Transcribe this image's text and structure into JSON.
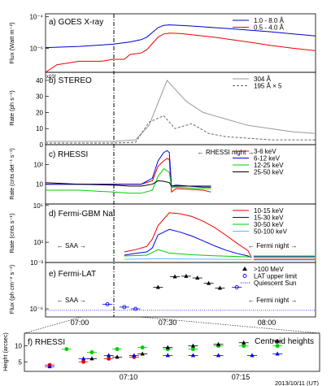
{
  "figure": {
    "bottom_xlabel": "2013/10/11 (UT)",
    "time_ticks_main": [
      "07:00",
      "07:30",
      "08:00"
    ],
    "time_ticks_zoom": [
      "07:10",
      "07:15"
    ]
  },
  "chart_data": [
    {
      "id": "goes",
      "type": "line",
      "panel_label": "a) GOES X-ray",
      "ylabel": "Flux (Watt m⁻²)",
      "yscale": "log",
      "ylim": [
        3e-08,
        0.00015
      ],
      "ytick_labels": [
        "10⁻⁴",
        "10⁻⁶"
      ],
      "ytick_values": [
        0.0001,
        1e-06
      ],
      "xlim": [
        6.2,
        8.6
      ],
      "series": [
        {
          "name": "1.0 - 8.0 Å",
          "color": "#0000cc",
          "x": [
            6.2,
            6.5,
            6.8,
            6.95,
            7.05,
            7.1,
            7.15,
            7.2,
            7.25,
            7.3,
            7.4,
            7.55,
            7.7,
            7.85,
            8.0,
            8.2,
            8.4,
            8.6
          ],
          "y": [
            1.1e-06,
            1.3e-06,
            1.8e-06,
            2.5e-06,
            3.5e-06,
            5e-06,
            1e-05,
            2e-05,
            2.8e-05,
            3e-05,
            2.8e-05,
            2.4e-05,
            2e-05,
            1.7e-05,
            1.4e-05,
            1.1e-05,
            8e-06,
            6e-06
          ]
        },
        {
          "name": "0.5 - 4.0 Å",
          "color": "#ee0000",
          "x": [
            6.2,
            6.3,
            6.5,
            6.7,
            6.8,
            6.9,
            6.95,
            7.05,
            7.1,
            7.15,
            7.2,
            7.25,
            7.3,
            7.4,
            7.55,
            7.7,
            7.85,
            8.0,
            8.2,
            8.4,
            8.6
          ],
          "y": [
            3e-08,
            9e-08,
            1.5e-07,
            1.5e-07,
            2e-07,
            2e-07,
            4e-07,
            5e-07,
            8e-07,
            2e-06,
            5e-06,
            8e-06,
            9e-06,
            8.5e-06,
            6.5e-06,
            5e-06,
            3.5e-06,
            2.5e-06,
            1.5e-06,
            1e-06,
            7e-07
          ]
        }
      ]
    },
    {
      "id": "stereo",
      "type": "line",
      "panel_label": "b) STEREO",
      "ylabel": "Rate (ph s⁻¹)",
      "multiplier_label": "x10⁶",
      "ylim": [
        0,
        45
      ],
      "ytick_values": [
        0,
        10,
        20,
        30,
        40
      ],
      "ytick_labels": [
        "0",
        "10",
        "20",
        "30",
        "40"
      ],
      "xlim": [
        6.2,
        8.6
      ],
      "series": [
        {
          "name": "304 Å",
          "color": "#999999",
          "dash": "",
          "x": [
            6.2,
            6.5,
            6.8,
            7.0,
            7.12,
            7.28,
            7.45,
            7.6,
            7.8,
            8.0,
            8.2,
            8.4,
            8.6
          ],
          "y": [
            2,
            2,
            2,
            3,
            12,
            40,
            27,
            20,
            16,
            12,
            10,
            8,
            7
          ]
        },
        {
          "name": "195 Å × 5",
          "color": "#666666",
          "dash": "3,2",
          "x": [
            6.2,
            6.5,
            6.8,
            7.0,
            7.12,
            7.25,
            7.35,
            7.5,
            7.65,
            7.8,
            8.0,
            8.2,
            8.4,
            8.6
          ],
          "y": [
            1,
            1,
            1,
            1.5,
            14,
            18,
            10,
            13,
            7,
            5,
            4,
            3,
            3,
            3
          ]
        }
      ]
    },
    {
      "id": "rhessi",
      "type": "line",
      "panel_label": "c) RHESSI",
      "ylabel": "Rate (cnts det⁻¹ s⁻¹)",
      "yscale": "log",
      "ylim": [
        1,
        1000
      ],
      "ytick_values": [
        10,
        100
      ],
      "ytick_labels": [
        "10",
        "10²"
      ],
      "xlim": [
        6.2,
        8.6
      ],
      "annotation": "← RHESSI night →",
      "series": [
        {
          "name": "3-6 keV",
          "color": "#ee0000",
          "x": [
            6.2,
            6.5,
            6.8,
            6.95,
            7.05,
            7.15,
            7.2,
            7.25,
            7.28,
            7.3,
            7.32,
            7.36,
            7.6,
            7.67
          ],
          "y": [
            10,
            10,
            10,
            10,
            10,
            15,
            80,
            150,
            200,
            180,
            4,
            6,
            5,
            4
          ]
        },
        {
          "name": "6-12 keV",
          "color": "#0000ee",
          "x": [
            6.2,
            6.5,
            6.8,
            6.95,
            7.05,
            7.15,
            7.2,
            7.25,
            7.28,
            7.3,
            7.32,
            7.36,
            7.6,
            7.67
          ],
          "y": [
            10,
            10,
            10,
            10,
            10,
            20,
            150,
            400,
            500,
            400,
            8,
            9,
            7,
            7
          ]
        },
        {
          "name": "12-25 keV",
          "color": "#00cc00",
          "x": [
            6.2,
            6.5,
            6.8,
            6.95,
            7.05,
            7.15,
            7.2,
            7.25,
            7.3,
            7.32,
            7.36,
            7.6,
            7.67
          ],
          "y": [
            5,
            5,
            4,
            3.5,
            3.5,
            5,
            25,
            60,
            40,
            7,
            7,
            6,
            6
          ]
        },
        {
          "name": "25-50 keV",
          "color": "#000000",
          "x": [
            6.2,
            6.5,
            6.8,
            6.95,
            7.05,
            7.15,
            7.2,
            7.25,
            7.3,
            7.32,
            7.36,
            7.6,
            7.67
          ],
          "y": [
            12,
            10,
            9,
            8,
            8,
            10,
            15,
            14,
            12,
            8,
            8,
            8,
            8
          ]
        }
      ]
    },
    {
      "id": "gbm",
      "type": "line",
      "panel_label": "d) Fermi-GBM NaI",
      "ylabel": "Rate (cnts s⁻¹)",
      "yscale": "log",
      "ylim": [
        80,
        120000
      ],
      "ytick_values": [
        1000,
        100000
      ],
      "ytick_labels": [
        "10³",
        "10⁵"
      ],
      "xlim": [
        6.2,
        8.6
      ],
      "annotations": [
        "← SAA →",
        "← Fermi night →"
      ],
      "series": [
        {
          "name": "10-15 keV",
          "color": "#ee0000",
          "x": [
            6.9,
            7.0,
            7.1,
            7.15,
            7.2,
            7.3,
            7.4,
            7.5,
            7.6,
            7.7,
            7.8,
            7.9,
            8.0,
            8.03
          ],
          "y": [
            300,
            400,
            600,
            1500,
            8000,
            40000,
            35000,
            25000,
            14000,
            6500,
            2500,
            900,
            350,
            150
          ]
        },
        {
          "name": "15-30 keV",
          "color": "#0000ee",
          "x": [
            6.9,
            7.0,
            7.1,
            7.15,
            7.2,
            7.3,
            7.4,
            7.5,
            7.6,
            7.7,
            7.8,
            7.9,
            8.0,
            8.03
          ],
          "y": [
            200,
            250,
            300,
            500,
            2500,
            5000,
            3500,
            2200,
            1200,
            650,
            380,
            250,
            180,
            150
          ]
        },
        {
          "name": "30-50 keV",
          "color": "#00cc00",
          "x": [
            6.9,
            7.0,
            7.1,
            7.15,
            7.2,
            7.3,
            7.5,
            7.7,
            7.9,
            8.03
          ],
          "y": [
            180,
            190,
            200,
            280,
            400,
            260,
            210,
            185,
            170,
            160
          ]
        },
        {
          "name": "50-100 keV",
          "color": "#5bb8ff",
          "x": [
            6.9,
            7.1,
            7.2,
            7.4,
            7.7,
            8.03
          ],
          "y": [
            120,
            125,
            130,
            125,
            120,
            115
          ]
        }
      ],
      "post_night": [
        {
          "color": "#ee0000",
          "y": 120
        },
        {
          "color": "#0000ee",
          "y": 160
        },
        {
          "color": "#00cc00",
          "y": 180
        },
        {
          "color": "#5bb8ff",
          "y": 110
        }
      ]
    },
    {
      "id": "lat",
      "type": "scatter",
      "panel_label": "e) Fermi-LAT",
      "ylabel": "Flux (ph cm⁻² s⁻¹)",
      "yscale": "log",
      "ylim": [
        3e-07,
        0.001
      ],
      "ytick_values": [
        0.001,
        1e-06
      ],
      "ytick_labels": [
        "10⁻³",
        "10⁻⁶"
      ],
      "xlim": [
        6.2,
        8.6
      ],
      "annotations": [
        "← SAA →",
        "← Fermi night →"
      ],
      "quiescent_sun": 8e-07,
      "series": [
        {
          "name": ">100 MeV",
          "color": "#000000",
          "marker": "triangle",
          "x": [
            7.2,
            7.35,
            7.45,
            7.55,
            7.65,
            7.75
          ],
          "y": [
            2.5e-05,
            0.00012,
            0.00013,
            0.0001,
            4.5e-05,
            2.2e-05
          ]
        },
        {
          "name": "LAT upper limit",
          "color": "#0000ee",
          "marker": "circle",
          "x": [
            6.75,
            6.9,
            7.0,
            7.9
          ],
          "y": [
            2e-06,
            1.3e-06,
            1e-06,
            2.5e-05
          ]
        },
        {
          "name": "Quiescent Sun",
          "color": "#0000ee",
          "marker": "dotted-line",
          "x": [],
          "y": []
        }
      ]
    },
    {
      "id": "heights",
      "type": "scatter",
      "panel_label": "f) RHESSI",
      "title": "Centroid heights",
      "ylabel": "Height (arcsec)",
      "ylim": [
        2,
        14
      ],
      "ytick_values": [
        5,
        10
      ],
      "ytick_labels": [
        "5",
        "10"
      ],
      "xlabel": "2013/10/11 (UT)",
      "series": [
        {
          "name": "3-6 keV",
          "color": "#ee0000",
          "marker": "circle",
          "x": [
            7.03,
            7.07,
            7.1,
            7.13
          ],
          "y": [
            4,
            5,
            6,
            6.5
          ]
        },
        {
          "name": "6-12 keV",
          "color": "#0000ee",
          "marker": "triangle",
          "x": [
            7.03,
            7.07,
            7.1,
            7.13,
            7.17,
            7.2,
            7.23,
            7.27,
            7.3
          ],
          "y": [
            3.5,
            6,
            7,
            7,
            7,
            7,
            7,
            7,
            7.5
          ]
        },
        {
          "name": "12-25 keV",
          "color": "#00cc00",
          "marker": "circle",
          "x": [
            7.05,
            7.08,
            7.11,
            7.14,
            7.17,
            7.2,
            7.23,
            7.26,
            7.3
          ],
          "y": [
            9,
            8,
            9,
            9.5,
            9,
            9,
            10,
            10,
            10
          ]
        },
        {
          "name": "25-50 keV",
          "color": "#000000",
          "marker": "triangle",
          "x": [
            7.08,
            7.11,
            7.14,
            7.17,
            7.2,
            7.23,
            7.26,
            7.3
          ],
          "y": [
            6,
            6.5,
            7.5,
            9.5,
            10,
            10.5,
            11,
            11.5
          ]
        }
      ]
    }
  ]
}
